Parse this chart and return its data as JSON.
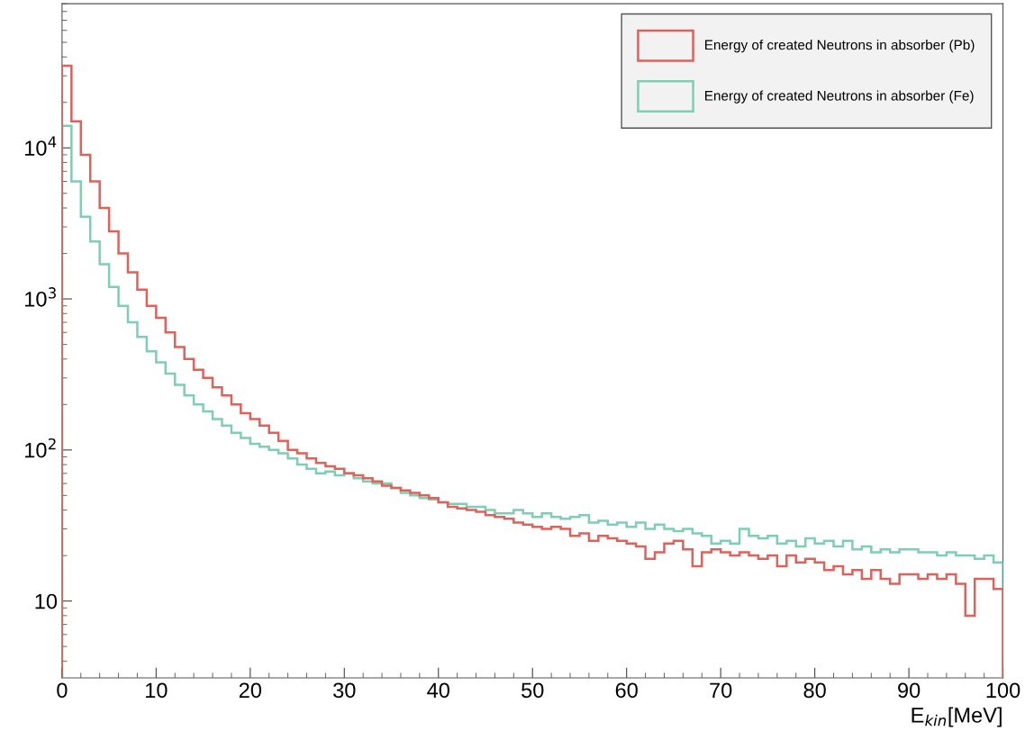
{
  "chart_data": {
    "type": "histogram",
    "xlabel": "E$_{kin}$[MeV]",
    "bins": [
      0,
      1,
      2,
      3,
      4,
      5,
      6,
      7,
      8,
      9,
      10,
      11,
      12,
      13,
      14,
      15,
      16,
      17,
      18,
      19,
      20,
      21,
      22,
      23,
      24,
      25,
      26,
      27,
      28,
      29,
      30,
      31,
      32,
      33,
      34,
      35,
      36,
      37,
      38,
      39,
      40,
      41,
      42,
      43,
      44,
      45,
      46,
      47,
      48,
      49,
      50,
      51,
      52,
      53,
      54,
      55,
      56,
      57,
      58,
      59,
      60,
      61,
      62,
      63,
      64,
      65,
      66,
      67,
      68,
      69,
      70,
      71,
      72,
      73,
      74,
      75,
      76,
      77,
      78,
      79,
      80,
      81,
      82,
      83,
      84,
      85,
      86,
      87,
      88,
      89,
      90,
      91,
      92,
      93,
      94,
      95,
      96,
      97,
      98,
      99,
      100
    ],
    "series": [
      {
        "name": "Energy of created Neutrons in absorber (Pb)",
        "color": "#e0605a",
        "values": [
          35000,
          15000,
          9000,
          6000,
          4000,
          2800,
          2000,
          1500,
          1150,
          900,
          750,
          600,
          480,
          400,
          340,
          300,
          260,
          230,
          200,
          175,
          160,
          145,
          130,
          115,
          100,
          95,
          88,
          82,
          78,
          75,
          70,
          68,
          65,
          62,
          58,
          56,
          54,
          52,
          50,
          48,
          45,
          42,
          41,
          40,
          39,
          37,
          36,
          35,
          33,
          32,
          31,
          30,
          31,
          30,
          27,
          28,
          25,
          27,
          26,
          25,
          24,
          23,
          19,
          21,
          24,
          25,
          22,
          17,
          21,
          22,
          21,
          20,
          21,
          20,
          19,
          20,
          17,
          20,
          18,
          19,
          18,
          16,
          17,
          15,
          16,
          14,
          16,
          14,
          13,
          15,
          15,
          14,
          15,
          14,
          15,
          13,
          8,
          14,
          14,
          12
        ]
      },
      {
        "name": "Energy of created Neutrons in absorber (Fe)",
        "color": "#7ccfb0",
        "values": [
          14000,
          6000,
          3500,
          2400,
          1700,
          1200,
          900,
          700,
          560,
          450,
          380,
          320,
          270,
          230,
          200,
          180,
          160,
          145,
          130,
          120,
          110,
          105,
          100,
          95,
          88,
          80,
          75,
          70,
          72,
          68,
          70,
          65,
          62,
          60,
          60,
          56,
          52,
          50,
          48,
          47,
          45,
          44,
          44,
          42,
          42,
          40,
          38,
          38,
          40,
          38,
          36,
          38,
          36,
          35,
          36,
          37,
          33,
          34,
          32,
          33,
          31,
          33,
          30,
          32,
          30,
          29,
          30,
          28,
          27,
          24,
          25,
          24,
          30,
          27,
          26,
          27,
          24,
          25,
          23,
          26,
          24,
          25,
          23,
          25,
          22,
          23,
          21,
          22,
          21,
          22,
          22,
          21,
          21,
          20,
          21,
          20,
          20,
          19,
          20,
          18
        ]
      }
    ],
    "log": "y",
    "xlim": [
      0,
      100
    ],
    "xticks": [
      0,
      10,
      20,
      30,
      40,
      50,
      60,
      70,
      80,
      90,
      100
    ],
    "ylim": [
      3.1,
      90000
    ],
    "yticks": [
      10,
      {
        "value": 100,
        "label": "10$^{2}$"
      },
      {
        "value": 1000,
        "label": "10$^{3}$"
      },
      {
        "value": 10000,
        "label": "10$^{4}$"
      }
    ],
    "legend": "top right",
    "grid": false
  }
}
